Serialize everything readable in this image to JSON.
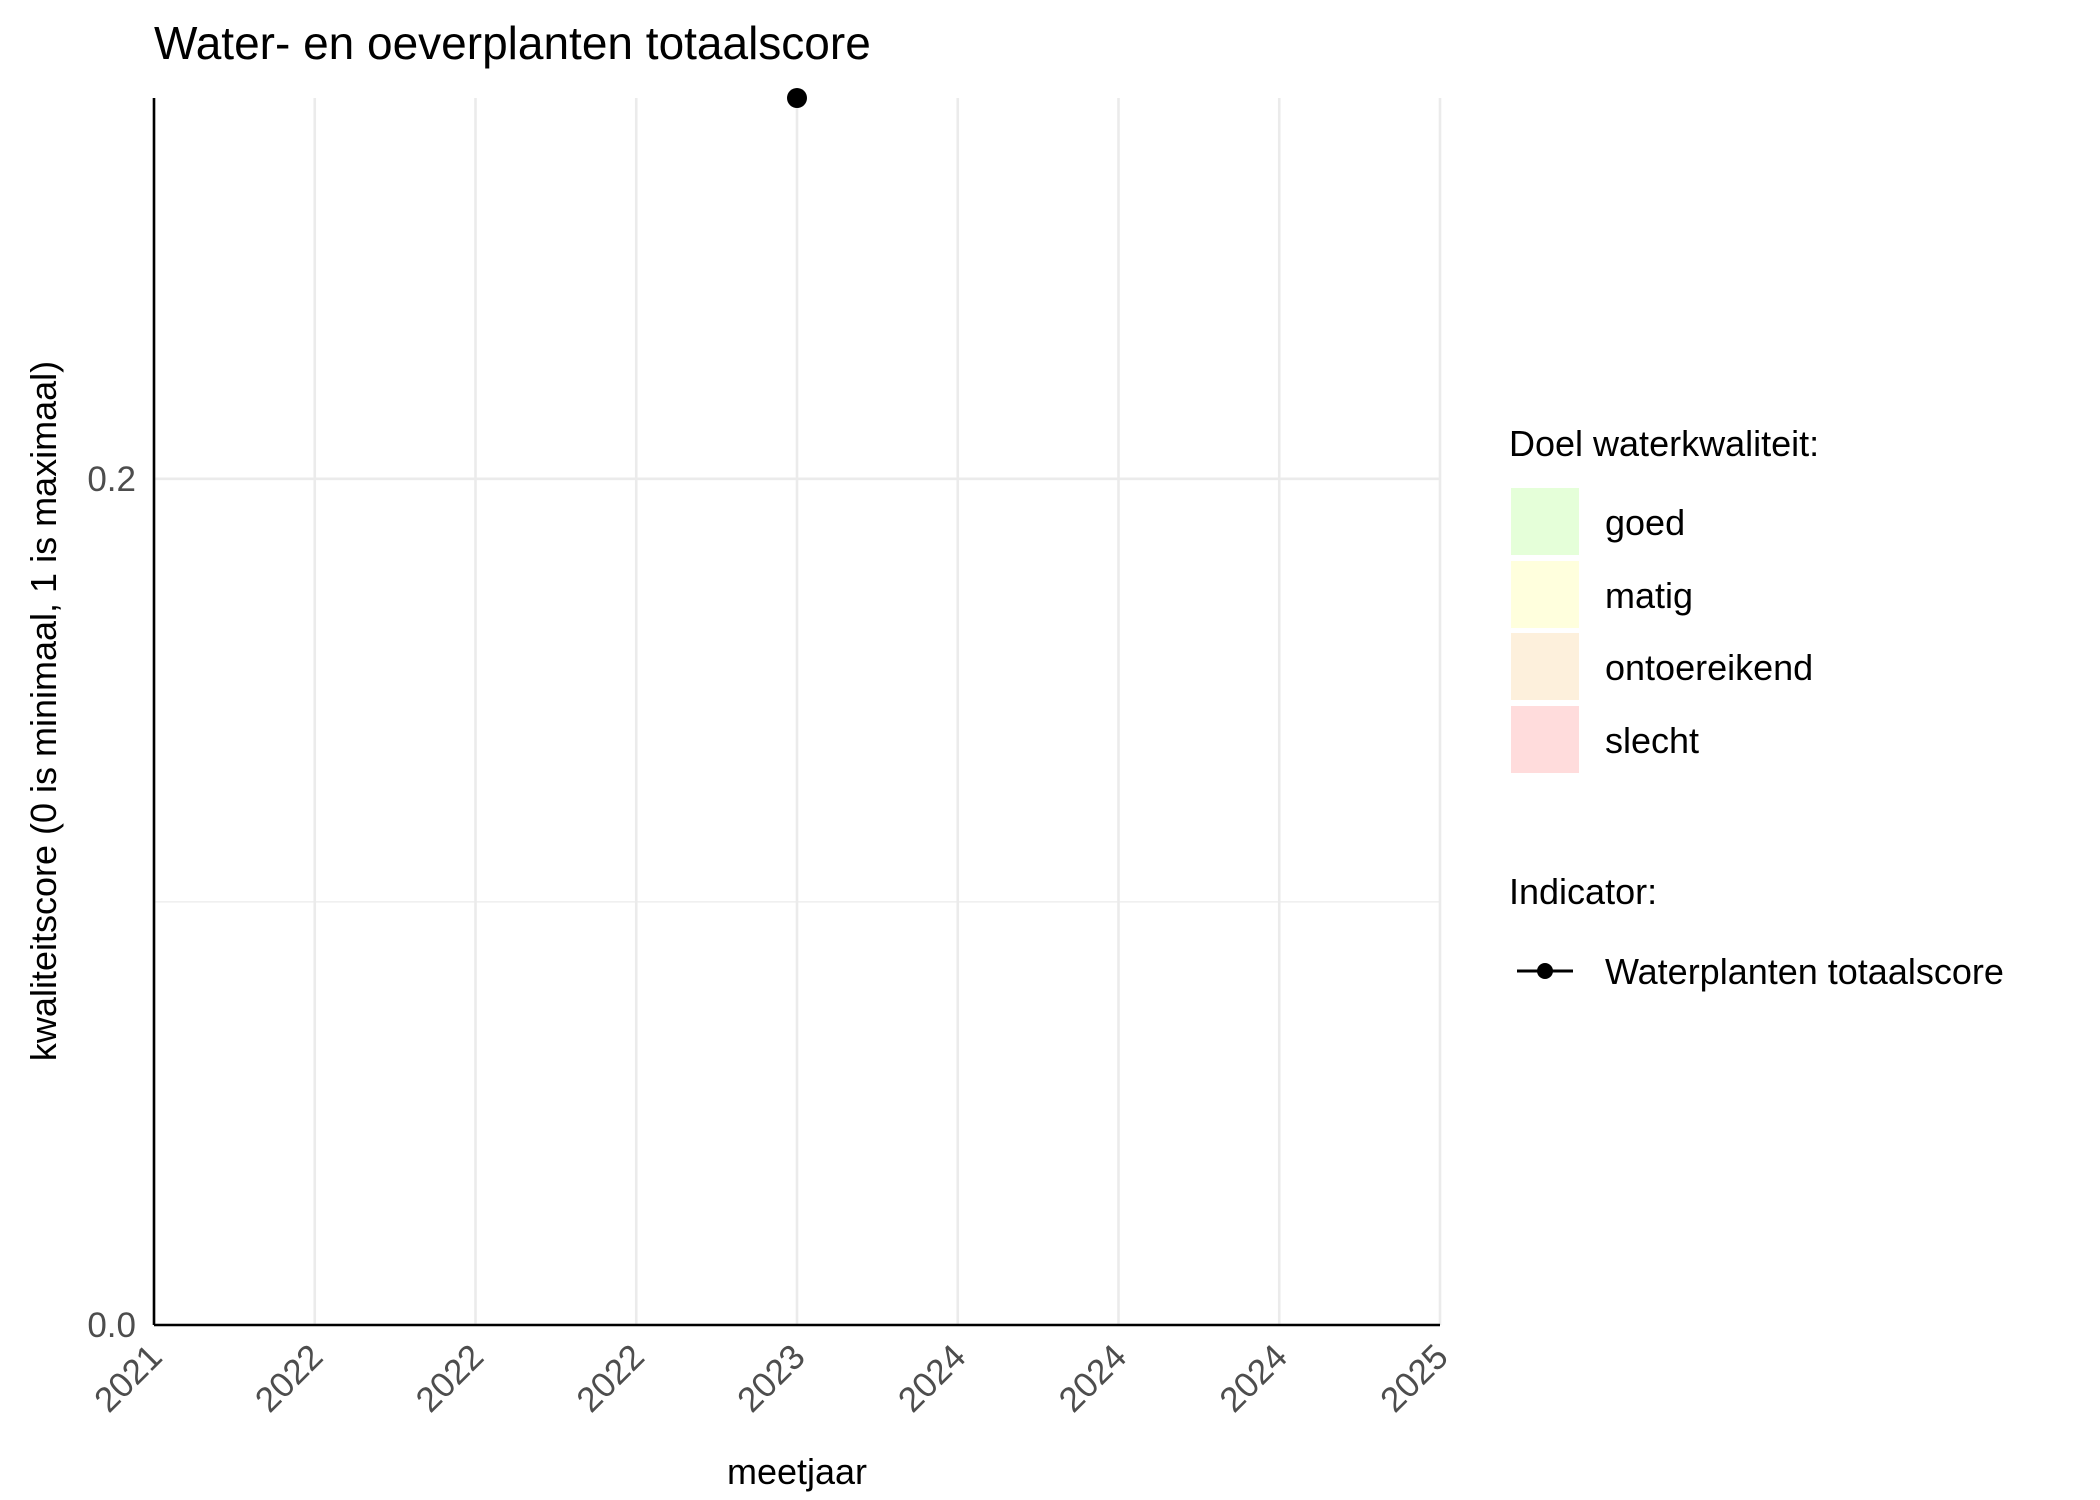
{
  "chart_data": {
    "type": "line",
    "title": "Water- en oeverplanten totaalscore",
    "xlabel": "meetjaar",
    "ylabel": "kwaliteitscore (0 is minimaal, 1 is maximaal)",
    "x_ticks": [
      "2021",
      "2022",
      "2022",
      "2022",
      "2023",
      "2024",
      "2024",
      "2024",
      "2025"
    ],
    "y_ticks": [
      "0.0",
      "0.2"
    ],
    "ylim": [
      0,
      0.29
    ],
    "grid": true,
    "series": [
      {
        "name": "Waterplanten totaalscore",
        "color": "#000000",
        "points": [
          {
            "x": 4,
            "y": 0.29
          }
        ]
      }
    ],
    "legend": {
      "placement": "right",
      "fill_title": "Doel waterkwaliteit:",
      "fill_items": [
        {
          "label": "goed",
          "color": "#e5ffd9"
        },
        {
          "label": "matig",
          "color": "#ffffdd"
        },
        {
          "label": "ontoereikend",
          "color": "#fdf0dc"
        },
        {
          "label": "slecht",
          "color": "#ffdcdc"
        }
      ],
      "indicator_title": "Indicator:",
      "indicator_items": [
        {
          "label": "Waterplanten totaalscore",
          "color": "#000000"
        }
      ]
    }
  }
}
